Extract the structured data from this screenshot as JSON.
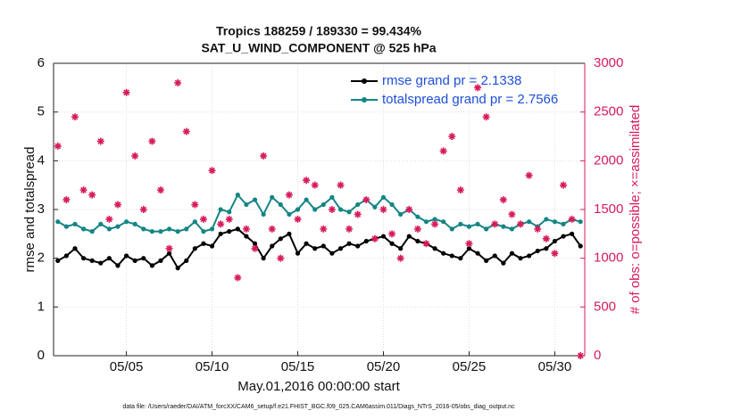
{
  "chart_data": {
    "type": "line",
    "title": "Tropics 188259 / 189330 = 99.434%",
    "subtitle": "SAT_U_WIND_COMPONENT @ 525 hPa",
    "xlabel": "May.01,2016 00:00:00 start",
    "ylabel": "rmse and totalspread",
    "y2label": "# of obs: o=possible; ×=assimilated",
    "footer": "data file: /Users/raeder/DAI/ATM_forcXX/CAM6_setup/f.e21.FHIST_BGC.f09_025.CAM6assim.011/Diags_NTrS_2016-05/obs_diag_output.nc",
    "x": [
      1,
      1.5,
      2,
      2.5,
      3,
      3.5,
      4,
      4.5,
      5,
      5.5,
      6,
      6.5,
      7,
      7.5,
      8,
      8.5,
      9,
      9.5,
      10,
      10.5,
      11,
      11.5,
      12,
      12.5,
      13,
      13.5,
      14,
      14.5,
      15,
      15.5,
      16,
      16.5,
      17,
      17.5,
      18,
      18.5,
      19,
      19.5,
      20,
      20.5,
      21,
      21.5,
      22,
      22.5,
      23,
      23.5,
      24,
      24.5,
      25,
      25.5,
      26,
      26.5,
      27,
      27.5,
      28,
      28.5,
      29,
      29.5,
      30,
      30.5,
      31,
      31.5
    ],
    "xlim": [
      0.75,
      31.75
    ],
    "xticks": [
      {
        "value": 5,
        "label": "05/05"
      },
      {
        "value": 10,
        "label": "05/10"
      },
      {
        "value": 15,
        "label": "05/15"
      },
      {
        "value": 20,
        "label": "05/20"
      },
      {
        "value": 25,
        "label": "05/25"
      },
      {
        "value": 30,
        "label": "05/30"
      }
    ],
    "ylim": [
      0,
      6
    ],
    "yticks": [
      0,
      1,
      2,
      3,
      4,
      5,
      6
    ],
    "y2lim": [
      0,
      3000
    ],
    "y2ticks": [
      0,
      500,
      1000,
      1500,
      2000,
      2500,
      3000
    ],
    "y2color": "#d81b5a",
    "grid": true,
    "legend": "upper right",
    "series": [
      {
        "name": "rmse grand pr = 2.1338",
        "color": "#000000",
        "values": [
          1.95,
          2.05,
          2.2,
          2.0,
          1.95,
          1.9,
          2.0,
          1.85,
          2.05,
          1.95,
          2.0,
          1.85,
          1.95,
          2.1,
          1.8,
          1.95,
          2.2,
          2.3,
          2.25,
          2.5,
          2.55,
          2.6,
          2.45,
          2.3,
          2.0,
          2.25,
          2.4,
          2.5,
          2.1,
          2.3,
          2.2,
          2.25,
          2.1,
          2.2,
          2.3,
          2.25,
          2.35,
          2.4,
          2.45,
          2.3,
          2.2,
          2.45,
          2.35,
          2.3,
          2.2,
          2.1,
          2.05,
          2.0,
          2.2,
          2.1,
          1.95,
          2.05,
          1.9,
          2.1,
          2.0,
          2.05,
          2.15,
          2.2,
          2.35,
          2.45,
          2.5,
          2.25
        ]
      },
      {
        "name": "totalspread grand pr = 2.7566",
        "color": "#138585",
        "values": [
          2.75,
          2.65,
          2.7,
          2.6,
          2.55,
          2.7,
          2.6,
          2.65,
          2.75,
          2.7,
          2.6,
          2.55,
          2.55,
          2.6,
          2.55,
          2.6,
          2.75,
          2.55,
          2.6,
          3.0,
          2.95,
          3.3,
          3.1,
          3.2,
          2.9,
          3.25,
          3.1,
          2.9,
          3.0,
          3.2,
          3.0,
          3.1,
          3.25,
          3.0,
          2.95,
          3.1,
          3.2,
          3.05,
          3.25,
          3.1,
          2.9,
          3.0,
          2.85,
          2.75,
          2.8,
          2.75,
          2.6,
          2.7,
          2.65,
          2.7,
          2.6,
          2.7,
          2.65,
          2.6,
          2.7,
          2.75,
          2.65,
          2.8,
          2.75,
          2.7,
          2.8,
          2.75
        ]
      },
      {
        "axis": "y2",
        "color": "#d81b5a",
        "marker": "asterisk",
        "values": [
          2150,
          1600,
          2450,
          1700,
          1650,
          2200,
          1400,
          1550,
          2700,
          2050,
          1500,
          2200,
          1700,
          1100,
          2800,
          2300,
          1550,
          1400,
          1900,
          1350,
          1400,
          800,
          1300,
          1100,
          2050,
          1300,
          1000,
          1650,
          1400,
          1800,
          1750,
          1300,
          1500,
          1750,
          1300,
          1450,
          1600,
          1200,
          1500,
          1250,
          1000,
          1500,
          1300,
          1150,
          1350,
          2100,
          2250,
          1700,
          1150,
          2750,
          2450,
          1350,
          1600,
          1450,
          1350,
          1850,
          1300,
          1200,
          1050,
          1750,
          1400,
          0
        ]
      }
    ]
  }
}
